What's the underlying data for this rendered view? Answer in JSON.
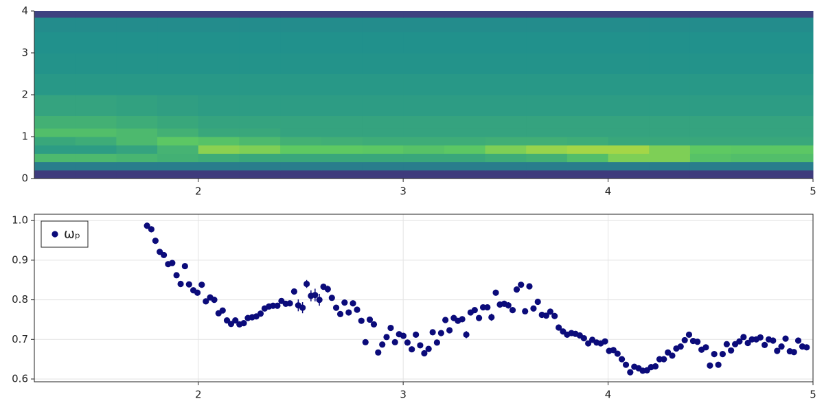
{
  "chart_data": [
    {
      "type": "heatmap",
      "colormap": "viridis",
      "xlim": [
        1.2,
        5.0
      ],
      "ylim": [
        0,
        4
      ],
      "xticks": [
        2,
        3,
        4,
        5
      ],
      "yticks": [
        0,
        1,
        2,
        3,
        4
      ],
      "grid": false,
      "x_edges": [
        1.2,
        1.4,
        1.6,
        1.8,
        2.0,
        2.2,
        2.4,
        2.6,
        2.8,
        3.0,
        3.2,
        3.4,
        3.6,
        3.8,
        4.0,
        4.2,
        4.4,
        4.6,
        4.8,
        5.0
      ],
      "y_edges": [
        0,
        0.2,
        0.4,
        0.6,
        0.8,
        1.0,
        1.2,
        1.5,
        2.0,
        2.5,
        3.0,
        3.5,
        3.85,
        4.0
      ],
      "z": [
        [
          0.18,
          0.18,
          0.18,
          0.18,
          0.18,
          0.18,
          0.18,
          0.18,
          0.18,
          0.18,
          0.18,
          0.18,
          0.18,
          0.18,
          0.18,
          0.18,
          0.18,
          0.18,
          0.18
        ],
        [
          0.42,
          0.42,
          0.42,
          0.42,
          0.42,
          0.42,
          0.42,
          0.42,
          0.42,
          0.42,
          0.42,
          0.42,
          0.42,
          0.42,
          0.42,
          0.42,
          0.42,
          0.42,
          0.42
        ],
        [
          0.68,
          0.68,
          0.66,
          0.64,
          0.62,
          0.6,
          0.6,
          0.6,
          0.6,
          0.6,
          0.6,
          0.62,
          0.64,
          0.7,
          0.8,
          0.8,
          0.72,
          0.7,
          0.7
        ],
        [
          0.55,
          0.55,
          0.58,
          0.65,
          0.82,
          0.8,
          0.75,
          0.75,
          0.74,
          0.72,
          0.74,
          0.8,
          0.84,
          0.86,
          0.86,
          0.8,
          0.75,
          0.74,
          0.74
        ],
        [
          0.6,
          0.62,
          0.68,
          0.74,
          0.72,
          0.68,
          0.64,
          0.63,
          0.62,
          0.62,
          0.62,
          0.63,
          0.63,
          0.62,
          0.6,
          0.6,
          0.6,
          0.6,
          0.6
        ],
        [
          0.7,
          0.7,
          0.68,
          0.64,
          0.6,
          0.6,
          0.58,
          0.58,
          0.58,
          0.58,
          0.58,
          0.58,
          0.58,
          0.58,
          0.58,
          0.58,
          0.58,
          0.58,
          0.58
        ],
        [
          0.64,
          0.64,
          0.62,
          0.6,
          0.58,
          0.58,
          0.58,
          0.58,
          0.58,
          0.58,
          0.58,
          0.58,
          0.58,
          0.58,
          0.58,
          0.58,
          0.58,
          0.58,
          0.58
        ],
        [
          0.58,
          0.58,
          0.57,
          0.56,
          0.55,
          0.55,
          0.55,
          0.55,
          0.55,
          0.55,
          0.55,
          0.55,
          0.55,
          0.55,
          0.55,
          0.55,
          0.55,
          0.55,
          0.55
        ],
        [
          0.53,
          0.53,
          0.53,
          0.53,
          0.53,
          0.53,
          0.53,
          0.53,
          0.53,
          0.53,
          0.53,
          0.53,
          0.53,
          0.53,
          0.53,
          0.53,
          0.53,
          0.53,
          0.53
        ],
        [
          0.51,
          0.51,
          0.51,
          0.51,
          0.51,
          0.51,
          0.51,
          0.51,
          0.51,
          0.51,
          0.51,
          0.51,
          0.51,
          0.51,
          0.51,
          0.51,
          0.51,
          0.51,
          0.51
        ],
        [
          0.5,
          0.5,
          0.5,
          0.5,
          0.5,
          0.5,
          0.5,
          0.5,
          0.5,
          0.5,
          0.5,
          0.5,
          0.5,
          0.5,
          0.5,
          0.5,
          0.5,
          0.5,
          0.5
        ],
        [
          0.48,
          0.48,
          0.48,
          0.48,
          0.48,
          0.48,
          0.48,
          0.48,
          0.48,
          0.48,
          0.48,
          0.48,
          0.48,
          0.48,
          0.48,
          0.48,
          0.48,
          0.48,
          0.48
        ],
        [
          0.2,
          0.2,
          0.2,
          0.2,
          0.2,
          0.2,
          0.2,
          0.2,
          0.2,
          0.2,
          0.2,
          0.2,
          0.2,
          0.2,
          0.2,
          0.2,
          0.2,
          0.2,
          0.2
        ]
      ]
    },
    {
      "type": "scatter",
      "xlim": [
        1.2,
        5.0
      ],
      "ylim": [
        0.593,
        1.016
      ],
      "xticks": [
        2,
        3,
        4,
        5
      ],
      "yticks": [
        0.6,
        0.7,
        0.8,
        0.9,
        {
          "value": 1.0,
          "label": "1.0"
        }
      ],
      "grid": true,
      "legend": "upper left",
      "series": [
        {
          "name": "ωₚ",
          "color": "#0b0b7a",
          "x": [
            1.75,
            1.771,
            1.791,
            1.812,
            1.832,
            1.853,
            1.873,
            1.894,
            1.914,
            1.935,
            1.955,
            1.976,
            1.996,
            2.017,
            2.037,
            2.058,
            2.078,
            2.099,
            2.119,
            2.14,
            2.16,
            2.181,
            2.201,
            2.222,
            2.242,
            2.263,
            2.283,
            2.304,
            2.324,
            2.345,
            2.365,
            2.386,
            2.406,
            2.427,
            2.447,
            2.468,
            2.488,
            2.509,
            2.529,
            2.55,
            2.57,
            2.591,
            2.611,
            2.632,
            2.652,
            2.673,
            2.693,
            2.714,
            2.734,
            2.755,
            2.775,
            2.796,
            2.816,
            2.837,
            2.857,
            2.878,
            2.898,
            2.919,
            2.939,
            2.96,
            2.98,
            3.001,
            3.021,
            3.042,
            3.062,
            3.083,
            3.103,
            3.124,
            3.144,
            3.165,
            3.185,
            3.206,
            3.226,
            3.247,
            3.267,
            3.288,
            3.308,
            3.329,
            3.349,
            3.37,
            3.39,
            3.411,
            3.431,
            3.452,
            3.472,
            3.493,
            3.513,
            3.534,
            3.554,
            3.575,
            3.595,
            3.616,
            3.636,
            3.657,
            3.677,
            3.698,
            3.718,
            3.739,
            3.759,
            3.78,
            3.8,
            3.821,
            3.841,
            3.862,
            3.882,
            3.903,
            3.923,
            3.944,
            3.964,
            3.985,
            4.005,
            4.026,
            4.046,
            4.067,
            4.087,
            4.108,
            4.128,
            4.149,
            4.169,
            4.19,
            4.21,
            4.231,
            4.251,
            4.272,
            4.292,
            4.313,
            4.333,
            4.354,
            4.374,
            4.395,
            4.415,
            4.436,
            4.456,
            4.477,
            4.497,
            4.518,
            4.538,
            4.559,
            4.579,
            4.6,
            4.62,
            4.641,
            4.661,
            4.682,
            4.702,
            4.723,
            4.743,
            4.764,
            4.784,
            4.805,
            4.825,
            4.846,
            4.866,
            4.887,
            4.907,
            4.928,
            4.948,
            4.969
          ],
          "values": [
            0.987,
            0.978,
            0.949,
            0.921,
            0.913,
            0.89,
            0.893,
            0.862,
            0.84,
            0.885,
            0.839,
            0.824,
            0.818,
            0.838,
            0.796,
            0.806,
            0.8,
            0.766,
            0.773,
            0.748,
            0.739,
            0.748,
            0.738,
            0.741,
            0.754,
            0.756,
            0.758,
            0.765,
            0.778,
            0.783,
            0.785,
            0.785,
            0.797,
            0.79,
            0.791,
            0.821,
            0.786,
            0.78,
            0.84,
            0.81,
            0.812,
            0.8,
            0.833,
            0.827,
            0.805,
            0.78,
            0.764,
            0.793,
            0.768,
            0.791,
            0.775,
            0.747,
            0.693,
            0.75,
            0.738,
            0.667,
            0.687,
            0.706,
            0.729,
            0.693,
            0.713,
            0.709,
            0.692,
            0.675,
            0.712,
            0.685,
            0.665,
            0.676,
            0.718,
            0.692,
            0.716,
            0.749,
            0.723,
            0.754,
            0.747,
            0.751,
            0.712,
            0.768,
            0.774,
            0.754,
            0.781,
            0.781,
            0.756,
            0.818,
            0.788,
            0.79,
            0.786,
            0.774,
            0.826,
            0.838,
            0.771,
            0.834,
            0.778,
            0.795,
            0.762,
            0.76,
            0.77,
            0.759,
            0.73,
            0.72,
            0.712,
            0.716,
            0.714,
            0.71,
            0.703,
            0.69,
            0.699,
            0.692,
            0.69,
            0.695,
            0.671,
            0.673,
            0.664,
            0.65,
            0.636,
            0.617,
            0.631,
            0.627,
            0.621,
            0.622,
            0.63,
            0.632,
            0.65,
            0.65,
            0.667,
            0.659,
            0.677,
            0.682,
            0.698,
            0.712,
            0.696,
            0.694,
            0.674,
            0.68,
            0.634,
            0.663,
            0.636,
            0.663,
            0.688,
            0.672,
            0.688,
            0.695,
            0.706,
            0.691,
            0.7,
            0.7,
            0.705,
            0.686,
            0.7,
            0.697,
            0.671,
            0.682,
            0.702,
            0.67,
            0.668,
            0.697,
            0.682,
            0.68
          ],
          "errors": [
            0.008,
            0.008,
            0.007,
            0.006,
            0.006,
            0.006,
            0.005,
            0.005,
            0.008,
            0.005,
            0.005,
            0.005,
            0.005,
            0.005,
            0.005,
            0.005,
            0.005,
            0.005,
            0.005,
            0.005,
            0.005,
            0.005,
            0.005,
            0.005,
            0.005,
            0.005,
            0.005,
            0.005,
            0.005,
            0.005,
            0.005,
            0.005,
            0.006,
            0.006,
            0.006,
            0.007,
            0.015,
            0.014,
            0.01,
            0.014,
            0.016,
            0.015,
            0.008,
            0.009,
            0.006,
            0.006,
            0.005,
            0.005,
            0.005,
            0.005,
            0.005,
            0.005,
            0.006,
            0.005,
            0.005,
            0.005,
            0.005,
            0.005,
            0.005,
            0.005,
            0.005,
            0.005,
            0.005,
            0.006,
            0.005,
            0.005,
            0.005,
            0.005,
            0.005,
            0.005,
            0.005,
            0.005,
            0.005,
            0.005,
            0.005,
            0.005,
            0.009,
            0.005,
            0.005,
            0.005,
            0.005,
            0.005,
            0.009,
            0.005,
            0.005,
            0.006,
            0.008,
            0.007,
            0.005,
            0.005,
            0.005,
            0.005,
            0.005,
            0.005,
            0.005,
            0.005,
            0.005,
            0.005,
            0.005,
            0.005,
            0.005,
            0.005,
            0.005,
            0.005,
            0.005,
            0.005,
            0.005,
            0.005,
            0.005,
            0.005,
            0.005,
            0.005,
            0.005,
            0.005,
            0.005,
            0.005,
            0.005,
            0.005,
            0.005,
            0.005,
            0.005,
            0.005,
            0.005,
            0.005,
            0.005,
            0.005,
            0.005,
            0.005,
            0.005,
            0.005,
            0.005,
            0.005,
            0.005,
            0.005,
            0.005,
            0.005,
            0.005,
            0.005,
            0.005,
            0.005,
            0.005,
            0.005,
            0.005,
            0.005,
            0.005,
            0.005,
            0.005,
            0.005,
            0.005,
            0.005,
            0.005,
            0.005,
            0.005,
            0.005,
            0.005,
            0.005,
            0.005,
            0.005
          ]
        }
      ]
    }
  ]
}
